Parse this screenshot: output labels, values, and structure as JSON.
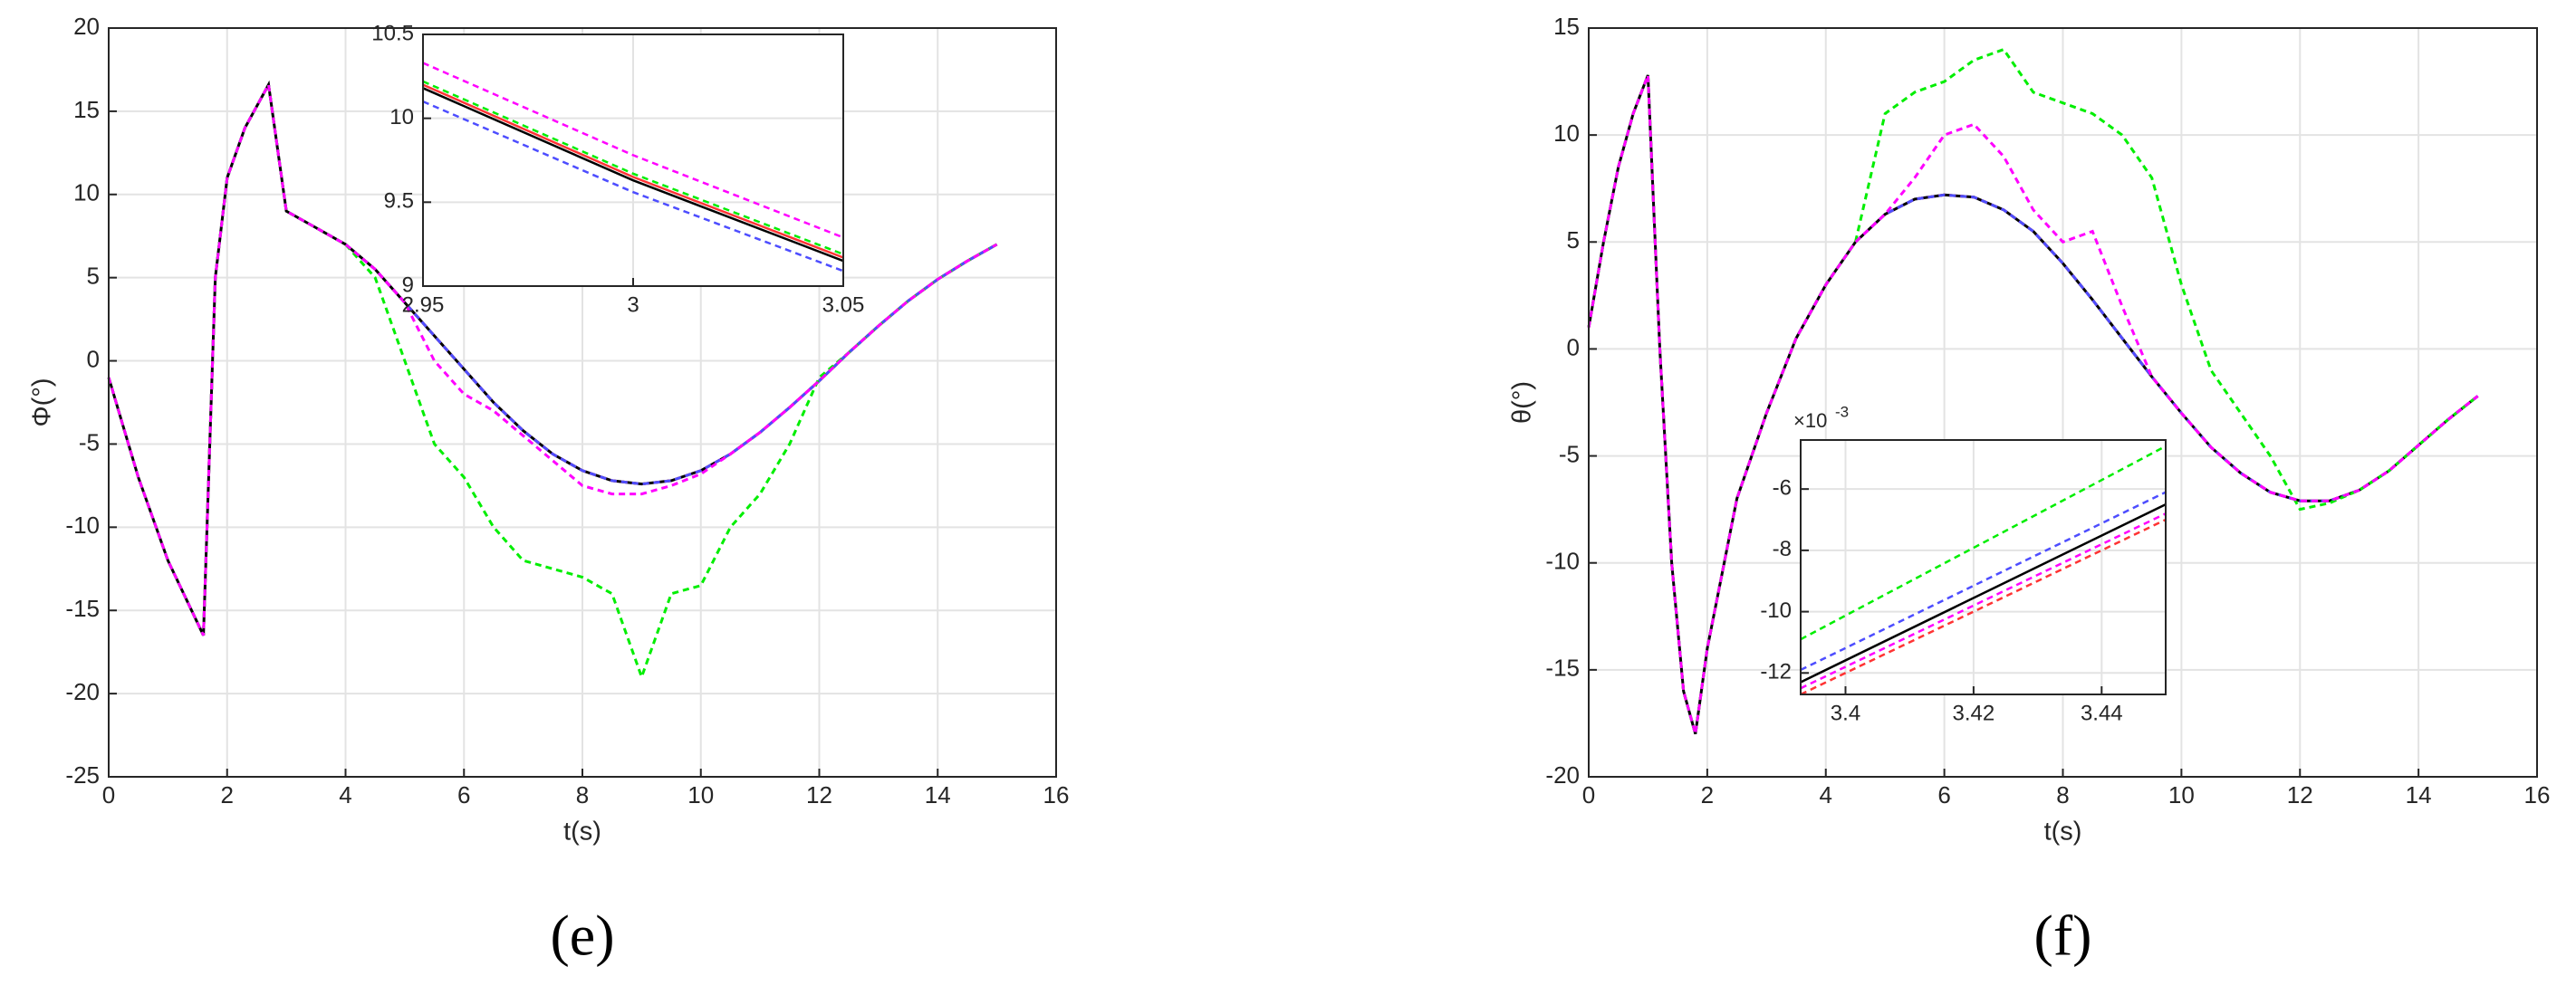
{
  "chart_data": [
    {
      "type": "line",
      "caption": "(e)",
      "xlabel": "t(s)",
      "ylabel": "Φ(°)",
      "grid": true,
      "xlim": [
        0,
        16
      ],
      "xticks": [
        0,
        2,
        4,
        6,
        8,
        10,
        12,
        14,
        16
      ],
      "ylim": [
        -25,
        20
      ],
      "yticks": [
        -25,
        -20,
        -15,
        -10,
        -5,
        0,
        5,
        10,
        15,
        20
      ],
      "x": [
        0,
        0.5,
        1,
        1.4,
        1.6,
        1.8,
        2,
        2.3,
        2.7,
        3,
        3.5,
        4,
        4.5,
        5,
        5.5,
        6,
        6.5,
        7,
        7.5,
        8,
        8.5,
        9,
        9.5,
        10,
        10.5,
        11,
        11.5,
        12,
        12.5,
        13,
        13.5,
        14,
        14.5,
        15
      ],
      "series": [
        {
          "color": "#000000",
          "line_style": "solid",
          "values": [
            -1,
            -7,
            -12,
            -15,
            -16.5,
            5,
            11,
            14,
            16.6,
            9,
            8,
            7,
            5.5,
            3.5,
            1.5,
            -0.5,
            -2.5,
            -4.2,
            -5.6,
            -6.6,
            -7.2,
            -7.4,
            -7.2,
            -6.6,
            -5.6,
            -4.3,
            -2.8,
            -1.2,
            0.5,
            2.1,
            3.6,
            4.9,
            6,
            7
          ]
        },
        {
          "color": "#ff3333",
          "line_style": "dashed",
          "values": [
            -1,
            -7,
            -12,
            -15,
            -16.5,
            5,
            11,
            14,
            16.6,
            9,
            8,
            7,
            5.5,
            3.5,
            1.5,
            -0.5,
            -2.5,
            -4.2,
            -5.6,
            -6.6,
            -7.2,
            -7.4,
            -7.2,
            -6.6,
            -5.6,
            -4.3,
            -2.8,
            -1.2,
            0.5,
            2.1,
            3.6,
            4.9,
            6,
            7
          ]
        },
        {
          "color": "#4d4dff",
          "line_style": "dashed",
          "values": [
            -1,
            -7,
            -12,
            -15,
            -16.5,
            5,
            11,
            14,
            16.6,
            9,
            8,
            7,
            5.5,
            3.5,
            1.5,
            -0.5,
            -2.5,
            -4.2,
            -5.6,
            -6.6,
            -7.2,
            -7.4,
            -7.2,
            -6.6,
            -5.6,
            -4.3,
            -2.8,
            -1.2,
            0.5,
            2.1,
            3.6,
            4.9,
            6,
            7
          ]
        },
        {
          "color": "#00ee00",
          "line_style": "dashed",
          "values": [
            -1,
            -7,
            -12,
            -15,
            -16.5,
            5,
            11,
            14,
            16.6,
            9,
            8,
            7,
            5,
            0,
            -5,
            -7,
            -10,
            -12,
            -12.5,
            -13,
            -14,
            -19,
            -14,
            -13.5,
            -10,
            -8,
            -5,
            -1,
            0.5,
            2.1,
            3.6,
            4.9,
            6,
            7
          ]
        },
        {
          "color": "#ff00ff",
          "line_style": "dashed",
          "values": [
            -1,
            -7,
            -12,
            -15,
            -16.5,
            5,
            11,
            14,
            16.6,
            9,
            8,
            7,
            5.5,
            3.5,
            0,
            -2,
            -3,
            -4.5,
            -6,
            -7.5,
            -8,
            -8,
            -7.5,
            -6.8,
            -5.6,
            -4.3,
            -2.8,
            -1.2,
            0.5,
            2.1,
            3.6,
            4.9,
            6,
            7
          ]
        }
      ]
    },
    {
      "type": "line",
      "grid": true,
      "xlim": [
        2.95,
        3.05
      ],
      "xticks": [
        2.95,
        3,
        3.05
      ],
      "ylim": [
        9,
        10.5
      ],
      "yticks": [
        9,
        9.5,
        10,
        10.5
      ],
      "x": [
        2.95,
        3,
        3.05
      ],
      "series": [
        {
          "color": "#000000",
          "line_style": "solid",
          "values": [
            10.18,
            9.63,
            9.15
          ]
        },
        {
          "color": "#ff3333",
          "line_style": "solid",
          "values": [
            10.2,
            9.65,
            9.17
          ]
        },
        {
          "color": "#4d4dff",
          "line_style": "dashed",
          "values": [
            10.1,
            9.56,
            9.09
          ]
        },
        {
          "color": "#00ee00",
          "line_style": "dashed",
          "values": [
            10.22,
            9.67,
            9.19
          ]
        },
        {
          "color": "#ff00ff",
          "line_style": "dashed",
          "values": [
            10.33,
            9.78,
            9.29
          ]
        }
      ]
    },
    {
      "type": "line",
      "caption": "(f)",
      "xlabel": "t(s)",
      "ylabel": "θ(°)",
      "grid": true,
      "xlim": [
        0,
        16
      ],
      "xticks": [
        0,
        2,
        4,
        6,
        8,
        10,
        12,
        14,
        16
      ],
      "ylim": [
        -20,
        15
      ],
      "yticks": [
        -20,
        -15,
        -10,
        -5,
        0,
        5,
        10,
        15
      ],
      "x": [
        0,
        0.25,
        0.5,
        0.75,
        1,
        1.2,
        1.4,
        1.6,
        1.8,
        2,
        2.5,
        3,
        3.5,
        4,
        4.5,
        5,
        5.5,
        6,
        6.5,
        7,
        7.5,
        8,
        8.5,
        9,
        9.5,
        10,
        10.5,
        11,
        11.5,
        12,
        12.5,
        13,
        13.5,
        14,
        14.5,
        15
      ],
      "series": [
        {
          "color": "#000000",
          "line_style": "solid",
          "values": [
            1,
            5,
            8.5,
            11,
            12.8,
            0,
            -10,
            -16,
            -18,
            -14,
            -7,
            -3,
            0.5,
            3,
            5,
            6.3,
            7,
            7.2,
            7.1,
            6.5,
            5.5,
            4,
            2.3,
            0.5,
            -1.3,
            -3,
            -4.6,
            -5.8,
            -6.7,
            -7.1,
            -7.1,
            -6.6,
            -5.7,
            -4.5,
            -3.3,
            -2.2
          ]
        },
        {
          "color": "#ff3333",
          "line_style": "dashed",
          "values": [
            1,
            5,
            8.5,
            11,
            12.8,
            0,
            -10,
            -16,
            -18,
            -14,
            -7,
            -3,
            0.5,
            3,
            5,
            6.3,
            7,
            7.2,
            7.1,
            6.5,
            5.5,
            4,
            2.3,
            0.5,
            -1.3,
            -3,
            -4.6,
            -5.8,
            -6.7,
            -7.1,
            -7.1,
            -6.6,
            -5.7,
            -4.5,
            -3.3,
            -2.2
          ]
        },
        {
          "color": "#4d4dff",
          "line_style": "dashed",
          "values": [
            1,
            5,
            8.5,
            11,
            12.8,
            0,
            -10,
            -16,
            -18,
            -14,
            -7,
            -3,
            0.5,
            3,
            5,
            6.3,
            7,
            7.2,
            7.1,
            6.5,
            5.5,
            4,
            2.3,
            0.5,
            -1.3,
            -3,
            -4.6,
            -5.8,
            -6.7,
            -7.1,
            -7.1,
            -6.6,
            -5.7,
            -4.5,
            -3.3,
            -2.2
          ]
        },
        {
          "color": "#00ee00",
          "line_style": "dashed",
          "values": [
            1,
            5,
            8.5,
            11,
            12.8,
            0,
            -10,
            -16,
            -18,
            -14,
            -7,
            -3,
            0.5,
            3,
            5,
            11,
            12,
            12.5,
            13.5,
            14,
            12,
            11.5,
            11,
            10,
            8,
            3,
            -1,
            -3,
            -5,
            -7.5,
            -7.2,
            -6.6,
            -5.7,
            -4.5,
            -3.3,
            -2.2
          ]
        },
        {
          "color": "#ff00ff",
          "line_style": "dashed",
          "values": [
            1,
            5,
            8.5,
            11,
            12.8,
            0,
            -10,
            -16,
            -18,
            -14,
            -7,
            -3,
            0.5,
            3,
            5,
            6.3,
            8,
            10,
            10.5,
            9,
            6.5,
            5,
            5.5,
            2,
            -1.3,
            -3,
            -4.6,
            -5.8,
            -6.7,
            -7.1,
            -7.1,
            -6.6,
            -5.7,
            -4.5,
            -3.3,
            -2.2
          ]
        }
      ]
    },
    {
      "type": "line",
      "grid": true,
      "y_multiplier": "×10",
      "y_exponent": "-3",
      "xlim": [
        3.393,
        3.45
      ],
      "xticks": [
        3.4,
        3.42,
        3.44
      ],
      "ylim": [
        -12.7,
        -4.4
      ],
      "yticks": [
        -12,
        -10,
        -8,
        -6
      ],
      "x": [
        3.393,
        3.45
      ],
      "series": [
        {
          "color": "#000000",
          "line_style": "solid",
          "values": [
            -12.3,
            -6.5
          ]
        },
        {
          "color": "#ff3333",
          "line_style": "dashed",
          "values": [
            -12.7,
            -7
          ]
        },
        {
          "color": "#4d4dff",
          "line_style": "dashed",
          "values": [
            -11.9,
            -6.1
          ]
        },
        {
          "color": "#00ee00",
          "line_style": "dashed",
          "values": [
            -10.9,
            -4.6
          ]
        },
        {
          "color": "#ff00ff",
          "line_style": "dashed",
          "values": [
            -12.5,
            -6.8
          ]
        }
      ]
    }
  ]
}
